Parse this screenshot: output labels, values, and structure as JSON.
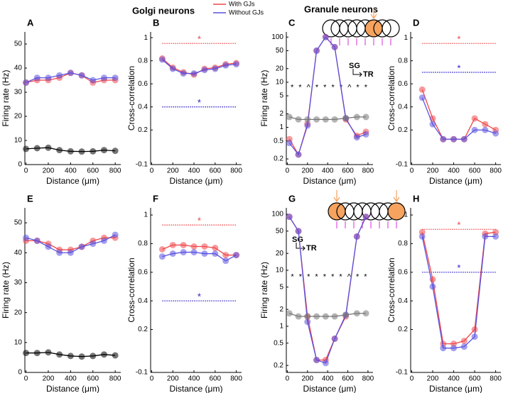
{
  "headings": [
    "Golgi neurons",
    "Granule neurons"
  ],
  "legend": [
    {
      "name": "With GJs",
      "color": "#f0474a"
    },
    {
      "name": "Without GJs",
      "color": "#5a52e0"
    }
  ],
  "chart_data": [
    {
      "type": "line",
      "label": "A",
      "xlabel": "Distance (μm)",
      "ylabel": "Firing rate (Hz)",
      "x": [
        0,
        100,
        200,
        300,
        400,
        500,
        600,
        700,
        800
      ],
      "xlim": [
        -10,
        850
      ],
      "xticks": [
        0,
        200,
        400,
        600,
        800
      ],
      "ylim": [
        0,
        55
      ],
      "yticks": [
        0,
        10,
        20,
        30,
        40,
        50
      ],
      "series": [
        {
          "color": "#f0474a",
          "values": [
            34,
            35,
            35,
            36,
            38,
            37,
            34,
            35,
            35
          ]
        },
        {
          "color": "#5a52e0",
          "values": [
            34,
            36,
            36,
            37,
            38,
            37,
            35,
            36,
            36
          ]
        },
        {
          "color": "#000000",
          "values": [
            6.5,
            6.8,
            7,
            6,
            5.5,
            5.4,
            5.5,
            6,
            5.7
          ]
        }
      ]
    },
    {
      "type": "line",
      "label": "B",
      "xlabel": "Distance (μm)",
      "ylabel": "Cross-correlation",
      "x": [
        100,
        200,
        300,
        400,
        500,
        600,
        700,
        800
      ],
      "xlim": [
        -10,
        850
      ],
      "xticks": [
        0,
        200,
        400,
        600,
        800
      ],
      "ylim": [
        -0.1,
        1.05
      ],
      "yticks": [
        -0.1,
        0.2,
        0.4,
        0.6,
        0.8,
        1
      ],
      "series": [
        {
          "color": "#f0474a",
          "values": [
            0.82,
            0.74,
            0.7,
            0.68,
            0.73,
            0.74,
            0.77,
            0.78
          ]
        },
        {
          "color": "#5a52e0",
          "values": [
            0.81,
            0.73,
            0.69,
            0.69,
            0.72,
            0.73,
            0.76,
            0.77
          ]
        }
      ],
      "reference_lines": [
        {
          "y": 0.95,
          "color": "#f0474a",
          "label": "*"
        },
        {
          "y": 0.4,
          "color": "#2b22c8",
          "label": "*"
        }
      ]
    },
    {
      "type": "line",
      "label": "C",
      "xlabel": "Distance (μm)",
      "ylabel": "Firing rate (Hz)",
      "log": true,
      "x": [
        20,
        110,
        200,
        290,
        380,
        470,
        580,
        690,
        780
      ],
      "xlim": [
        -10,
        850
      ],
      "xticks": [
        0,
        200,
        400,
        600,
        800
      ],
      "ylim": [
        0.15,
        130
      ],
      "yticks": [
        0.2,
        0.5,
        1,
        2,
        5,
        10,
        20,
        50,
        100
      ],
      "series": [
        {
          "color": "#f0474a",
          "values": [
            0.55,
            0.25,
            1.2,
            50,
            100,
            60,
            1.5,
            0.65,
            0.8
          ]
        },
        {
          "color": "#5a52e0",
          "values": [
            0.45,
            0.25,
            1.1,
            50,
            100,
            60,
            1.6,
            0.6,
            0.7
          ]
        },
        {
          "color": "#777777",
          "values": [
            1.7,
            1.5,
            1.5,
            1.5,
            1.5,
            1.5,
            1.6,
            1.7,
            1.7
          ]
        }
      ],
      "annotations": [
        "* * ^ * * * * ^ * *",
        "SG",
        "TR"
      ]
    },
    {
      "type": "line",
      "label": "D",
      "xlabel": "Distance (μm)",
      "ylabel": "Cross-correlation",
      "x": [
        100,
        200,
        300,
        400,
        500,
        600,
        700,
        800
      ],
      "xlim": [
        -10,
        850
      ],
      "xticks": [
        0,
        200,
        400,
        600,
        800
      ],
      "ylim": [
        -0.1,
        1.05
      ],
      "yticks": [
        -0.1,
        0.2,
        0.4,
        0.6,
        0.8,
        1
      ],
      "series": [
        {
          "color": "#f0474a",
          "values": [
            0.55,
            0.3,
            0.12,
            0.12,
            0.12,
            0.3,
            0.25,
            0.2
          ]
        },
        {
          "color": "#5a52e0",
          "values": [
            0.48,
            0.25,
            0.12,
            0.12,
            0.12,
            0.2,
            0.2,
            0.17
          ]
        }
      ],
      "reference_lines": [
        {
          "y": 0.95,
          "color": "#f0474a",
          "label": "*"
        },
        {
          "y": 0.7,
          "color": "#2b22c8",
          "label": "*"
        }
      ]
    },
    {
      "type": "line",
      "label": "E",
      "xlabel": "Distance (μm)",
      "ylabel": "Firing rate (Hz)",
      "x": [
        0,
        100,
        200,
        300,
        400,
        500,
        600,
        700,
        800
      ],
      "xlim": [
        -10,
        850
      ],
      "xticks": [
        0,
        200,
        400,
        600,
        800
      ],
      "ylim": [
        0,
        55
      ],
      "yticks": [
        0,
        10,
        20,
        30,
        40,
        50
      ],
      "series": [
        {
          "color": "#f0474a",
          "values": [
            44,
            44,
            43,
            41,
            41,
            42,
            44,
            45,
            45
          ]
        },
        {
          "color": "#5a52e0",
          "values": [
            45,
            44,
            42,
            40,
            40,
            42,
            43,
            44,
            46
          ]
        },
        {
          "color": "#000000",
          "values": [
            6.5,
            6.5,
            6.7,
            6,
            5.5,
            5.3,
            5.5,
            6,
            5.7
          ]
        }
      ]
    },
    {
      "type": "line",
      "label": "F",
      "xlabel": "Distance (μm)",
      "ylabel": "Cross-correlation",
      "x": [
        100,
        200,
        300,
        400,
        500,
        600,
        700,
        800
      ],
      "xlim": [
        -10,
        850
      ],
      "xticks": [
        0,
        200,
        400,
        600,
        800
      ],
      "ylim": [
        -0.1,
        1.05
      ],
      "yticks": [
        -0.1,
        0.2,
        0.4,
        0.6,
        0.8,
        1
      ],
      "series": [
        {
          "color": "#f0474a",
          "values": [
            0.76,
            0.79,
            0.79,
            0.78,
            0.78,
            0.77,
            0.72,
            0.72
          ]
        },
        {
          "color": "#5a52e0",
          "values": [
            0.71,
            0.73,
            0.74,
            0.74,
            0.73,
            0.73,
            0.68,
            0.72
          ]
        }
      ],
      "reference_lines": [
        {
          "y": 0.93,
          "color": "#f0474a",
          "label": "*"
        },
        {
          "y": 0.4,
          "color": "#2b22c8",
          "label": "*"
        }
      ]
    },
    {
      "type": "line",
      "label": "G",
      "xlabel": "Distance (μm)",
      "ylabel": "Firing rate (Hz)",
      "log": true,
      "x": [
        20,
        110,
        200,
        290,
        380,
        470,
        580,
        690,
        780
      ],
      "xlim": [
        -10,
        850
      ],
      "xticks": [
        0,
        200,
        400,
        600,
        800
      ],
      "ylim": [
        0.15,
        130
      ],
      "yticks": [
        0.2,
        0.5,
        1,
        2,
        5,
        10,
        20,
        50,
        100
      ],
      "series": [
        {
          "color": "#f0474a",
          "values": [
            90,
            50,
            1.5,
            0.25,
            0.25,
            0.6,
            1.5,
            40,
            90
          ]
        },
        {
          "color": "#5a52e0",
          "values": [
            90,
            50,
            1.2,
            0.25,
            0.22,
            0.6,
            1.6,
            40,
            90
          ]
        },
        {
          "color": "#777777",
          "values": [
            1.7,
            1.5,
            1.5,
            1.5,
            1.5,
            1.5,
            1.6,
            1.7,
            1.7
          ]
        }
      ],
      "annotations": [
        "* * * * * * * ^ * *",
        "SG",
        "TR"
      ]
    },
    {
      "type": "line",
      "label": "H",
      "xlabel": "Distance (μm)",
      "ylabel": "Cross-correlation",
      "x": [
        100,
        200,
        300,
        400,
        500,
        600,
        700,
        800
      ],
      "xlim": [
        -10,
        850
      ],
      "xticks": [
        0,
        200,
        400,
        600,
        800
      ],
      "ylim": [
        -0.1,
        1.05
      ],
      "yticks": [
        -0.1,
        0.2,
        0.4,
        0.6,
        0.8,
        1
      ],
      "series": [
        {
          "color": "#f0474a",
          "values": [
            0.88,
            0.55,
            0.1,
            0.1,
            0.12,
            0.2,
            0.87,
            0.88
          ]
        },
        {
          "color": "#5a52e0",
          "values": [
            0.85,
            0.5,
            0.07,
            0.07,
            0.08,
            0.15,
            0.85,
            0.85
          ]
        }
      ],
      "reference_lines": [
        {
          "y": 0.9,
          "color": "#f0474a",
          "label": "*"
        },
        {
          "y": 0.6,
          "color": "#2b22c8",
          "label": "*"
        }
      ]
    }
  ]
}
